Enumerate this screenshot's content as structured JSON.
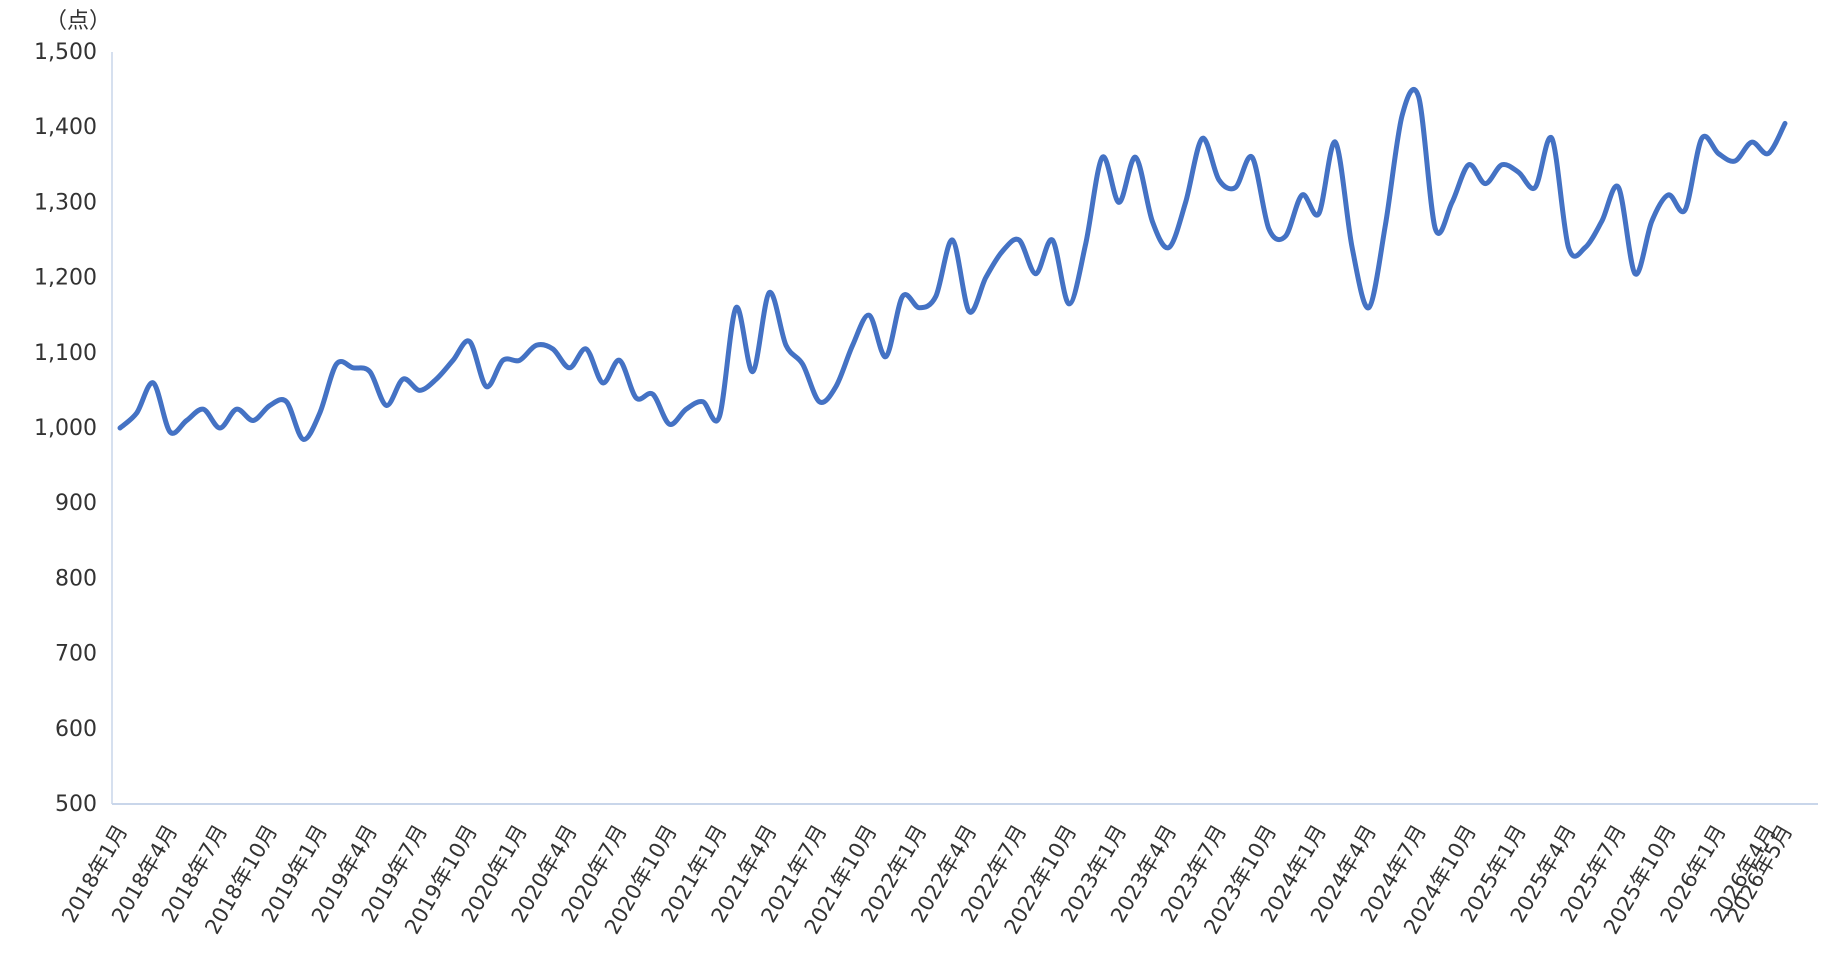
{
  "chart_data": {
    "type": "line",
    "unit_label": "（点）",
    "ylim": [
      500,
      1500
    ],
    "yticks": [
      "1,500",
      "1,400",
      "1,300",
      "1,200",
      "1,100",
      "1,000",
      "900",
      "800",
      "700",
      "600",
      "500"
    ],
    "ytick_values": [
      1500,
      1400,
      1300,
      1200,
      1100,
      1000,
      900,
      800,
      700,
      600,
      500
    ],
    "xtick_labels": [
      "2018年1月",
      "2018年4月",
      "2018年7月",
      "2018年10月",
      "2019年1月",
      "2019年4月",
      "2019年7月",
      "2019年10月",
      "2020年1月",
      "2020年4月",
      "2020年7月",
      "2020年10月",
      "2021年1月",
      "2021年4月",
      "2021年7月",
      "2021年10月",
      "2022年1月",
      "2022年4月",
      "2022年7月",
      "2022年10月",
      "2023年1月",
      "2023年4月",
      "2023年7月",
      "2023年10月",
      "2024年1月",
      "2024年4月",
      "2024年7月",
      "2024年10月",
      "2025年1月",
      "2025年4月",
      "2025年7月",
      "2025年10月",
      "2026年1月",
      "2026年4月",
      "2026年5月"
    ],
    "grid": false,
    "legend": "none",
    "line_color": "#4472C4",
    "series": [
      {
        "values": [
          1000,
          1020,
          1060,
          995,
          1010,
          1025,
          1000,
          1025,
          1010,
          1030,
          1035,
          985,
          1020,
          1085,
          1080,
          1075,
          1030,
          1065,
          1050,
          1065,
          1090,
          1115,
          1055,
          1090,
          1090,
          1110,
          1105,
          1080,
          1105,
          1060,
          1090,
          1040,
          1045,
          1005,
          1025,
          1035,
          1015,
          1160,
          1075,
          1180,
          1110,
          1085,
          1035,
          1055,
          1110,
          1150,
          1095,
          1175,
          1160,
          1175,
          1250,
          1155,
          1200,
          1235,
          1250,
          1205,
          1250,
          1165,
          1245,
          1360,
          1300,
          1360,
          1275,
          1240,
          1300,
          1385,
          1330,
          1320,
          1360,
          1265,
          1255,
          1310,
          1285,
          1380,
          1240,
          1160,
          1270,
          1415,
          1440,
          1265,
          1300,
          1350,
          1325,
          1350,
          1340,
          1320,
          1385,
          1240,
          1240,
          1275,
          1320,
          1205,
          1275,
          1310,
          1290,
          1385,
          1365,
          1355,
          1380,
          1365,
          1405
        ]
      }
    ]
  }
}
